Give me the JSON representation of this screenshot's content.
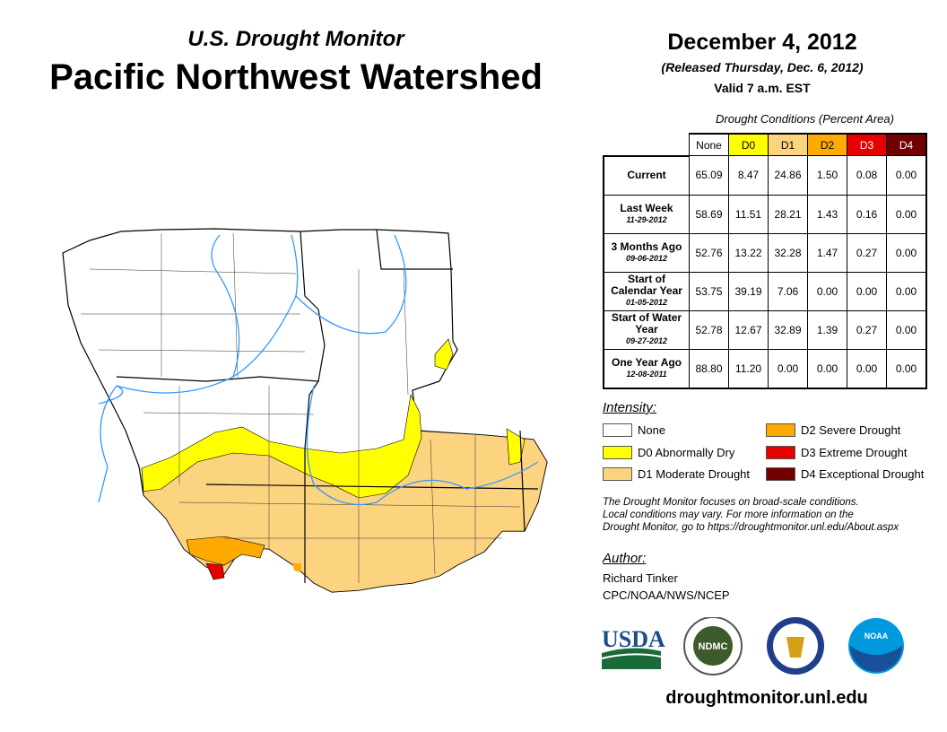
{
  "header": {
    "subtitle": "U.S. Drought Monitor",
    "title": "Pacific Northwest Watershed",
    "date": "December 4, 2012",
    "released": "(Released Thursday, Dec. 6, 2012)",
    "valid": "Valid 7 a.m. EST"
  },
  "table": {
    "caption": "Drought Conditions (Percent Area)",
    "columns": [
      {
        "label": "None",
        "color": "#ffffff",
        "text": "#000"
      },
      {
        "label": "D0",
        "color": "#ffff00",
        "text": "#000"
      },
      {
        "label": "D1",
        "color": "#fcd37f",
        "text": "#000"
      },
      {
        "label": "D2",
        "color": "#ffaa00",
        "text": "#000"
      },
      {
        "label": "D3",
        "color": "#e60000",
        "text": "#fff"
      },
      {
        "label": "D4",
        "color": "#730000",
        "text": "#fff"
      }
    ],
    "rows": [
      {
        "label": "Current",
        "date": "",
        "values": [
          "65.09",
          "8.47",
          "24.86",
          "1.50",
          "0.08",
          "0.00"
        ]
      },
      {
        "label": "Last Week",
        "date": "11-29-2012",
        "values": [
          "58.69",
          "11.51",
          "28.21",
          "1.43",
          "0.16",
          "0.00"
        ]
      },
      {
        "label": "3 Months Ago",
        "date": "09-06-2012",
        "values": [
          "52.76",
          "13.22",
          "32.28",
          "1.47",
          "0.27",
          "0.00"
        ]
      },
      {
        "label": "Start of Calendar Year",
        "date": "01-05-2012",
        "values": [
          "53.75",
          "39.19",
          "7.06",
          "0.00",
          "0.00",
          "0.00"
        ]
      },
      {
        "label": "Start of Water Year",
        "date": "09-27-2012",
        "values": [
          "52.78",
          "12.67",
          "32.89",
          "1.39",
          "0.27",
          "0.00"
        ]
      },
      {
        "label": "One Year Ago",
        "date": "12-08-2011",
        "values": [
          "88.80",
          "11.20",
          "0.00",
          "0.00",
          "0.00",
          "0.00"
        ]
      }
    ]
  },
  "legend": {
    "title": "Intensity:",
    "items": [
      {
        "label": "None",
        "color": "#ffffff"
      },
      {
        "label": "D0 Abnormally Dry",
        "color": "#ffff00"
      },
      {
        "label": "D1 Moderate Drought",
        "color": "#fcd37f"
      },
      {
        "label": "D2 Severe Drought",
        "color": "#ffaa00"
      },
      {
        "label": "D3 Extreme Drought",
        "color": "#e60000"
      },
      {
        "label": "D4 Exceptional Drought",
        "color": "#730000"
      }
    ]
  },
  "note": [
    "The Drought Monitor focuses on broad-scale conditions.",
    "Local conditions may vary. For more information on the",
    "Drought Monitor, go to https://droughtmonitor.unl.edu/About.aspx"
  ],
  "author": {
    "heading": "Author:",
    "name": "Richard Tinker",
    "org": "CPC/NOAA/NWS/NCEP"
  },
  "logos": {
    "usda": "USDA",
    "ndmc": "NDMC",
    "noaa": "NOAA"
  },
  "url": "droughtmonitor.unl.edu"
}
